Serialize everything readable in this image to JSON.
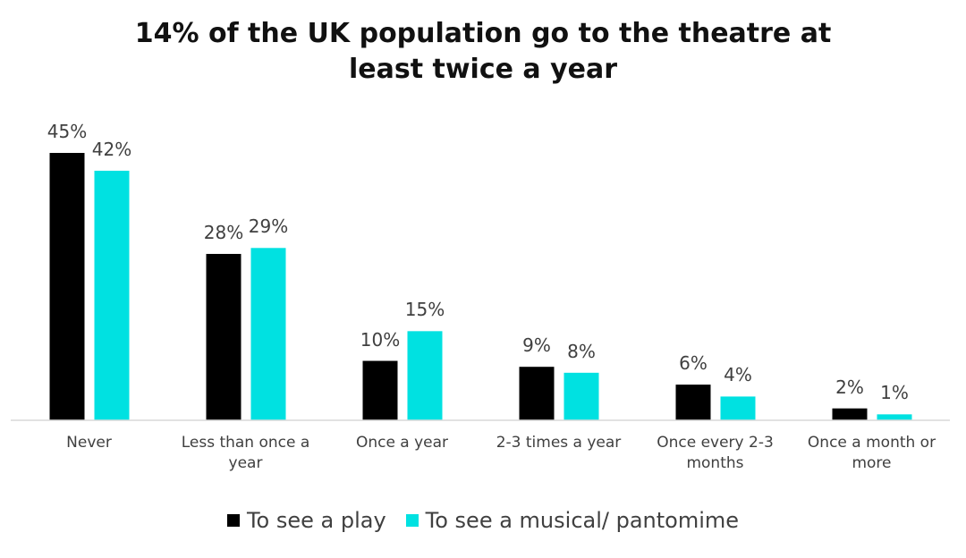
{
  "chart_data": {
    "type": "bar",
    "title": "14% of the UK population go to the theatre at least twice a year",
    "categories": [
      "Never",
      "Less than once a year",
      "Once a year",
      "2-3 times a year",
      "Once every 2-3 months",
      "Once a month or more"
    ],
    "series": [
      {
        "name": "To see a play",
        "color": "#000000",
        "values": [
          45,
          28,
          10,
          9,
          6,
          2
        ],
        "value_labels": [
          "45%",
          "28%",
          "10%",
          "9%",
          "6%",
          "2%"
        ]
      },
      {
        "name": "To see a musical/ pantomime",
        "color": "#00e1e1",
        "values": [
          42,
          29,
          15,
          8,
          4,
          1
        ],
        "value_labels": [
          "42%",
          "29%",
          "15%",
          "8%",
          "4%",
          "1%"
        ]
      }
    ],
    "legend": "bottom"
  }
}
